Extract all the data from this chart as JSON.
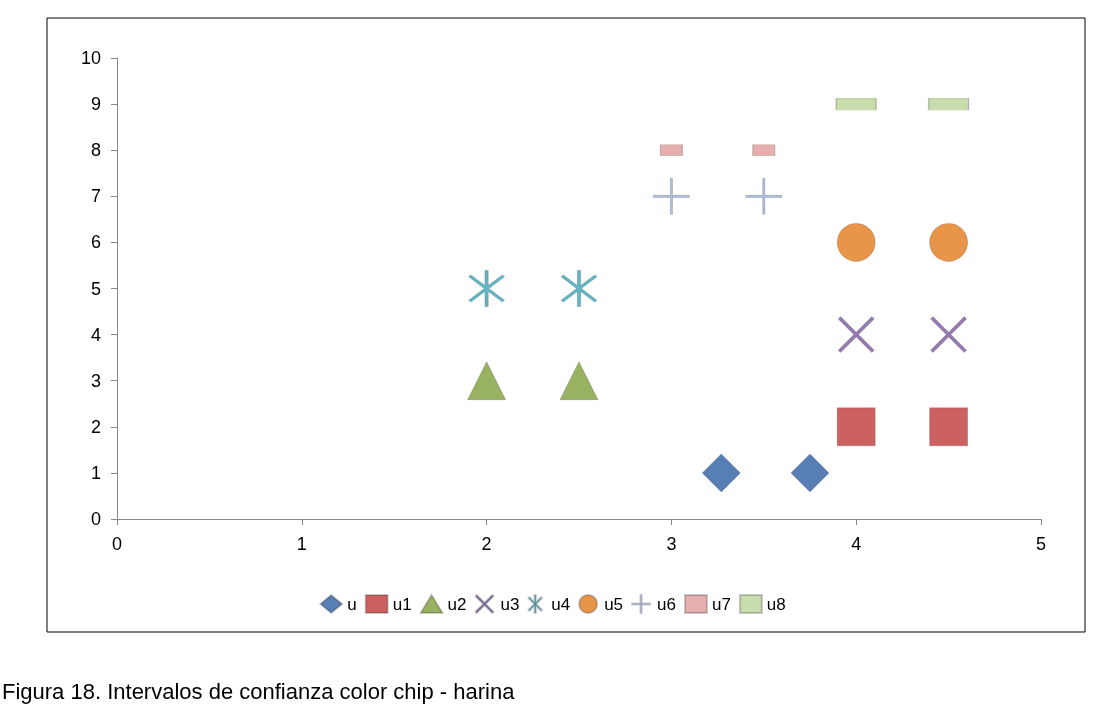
{
  "chart_data": {
    "type": "scatter",
    "xlim": [
      0,
      5
    ],
    "xticks": [
      0,
      1,
      2,
      3,
      4,
      5
    ],
    "ylim": [
      0,
      10
    ],
    "yticks": [
      0,
      1,
      2,
      3,
      4,
      5,
      6,
      7,
      8,
      9,
      10
    ],
    "grid": false,
    "legend": "bottom",
    "annotations": [
      "Figura 18. Intervalos de confianza color chip - harina"
    ],
    "series": [
      {
        "name": "u",
        "color": "#2e5fa3",
        "marker": "diamond",
        "x": [
          3.27,
          3.75
        ],
        "values": [
          1,
          1
        ]
      },
      {
        "name": "u1",
        "color": "#c0393a",
        "marker": "square",
        "x": [
          4,
          4.5
        ],
        "values": [
          2,
          2
        ]
      },
      {
        "name": "u2",
        "color": "#7f9f3a",
        "marker": "triangle",
        "x": [
          2,
          2.5
        ],
        "values": [
          3,
          3
        ]
      },
      {
        "name": "u3",
        "color": "#7a5a9e",
        "marker": "cross",
        "x": [
          4,
          4.5
        ],
        "values": [
          4,
          4
        ]
      },
      {
        "name": "u4",
        "color": "#3aa5b8",
        "marker": "star",
        "x": [
          2,
          2.5
        ],
        "values": [
          5,
          5
        ]
      },
      {
        "name": "u5",
        "color": "#e47a1c",
        "marker": "circle",
        "x": [
          4,
          4.5
        ],
        "values": [
          6,
          6
        ]
      },
      {
        "name": "u6",
        "color": "#9bb0d8",
        "marker": "plus",
        "x": [
          3,
          3.5
        ],
        "values": [
          7,
          7
        ]
      },
      {
        "name": "u7",
        "color": "#e09a9a",
        "marker": "rect",
        "x": [
          3,
          3.5
        ],
        "values": [
          8,
          8
        ]
      },
      {
        "name": "u8",
        "color": "#bcd39a",
        "x": [
          4,
          4.5
        ],
        "values": [
          9,
          9
        ]
      }
    ]
  }
}
